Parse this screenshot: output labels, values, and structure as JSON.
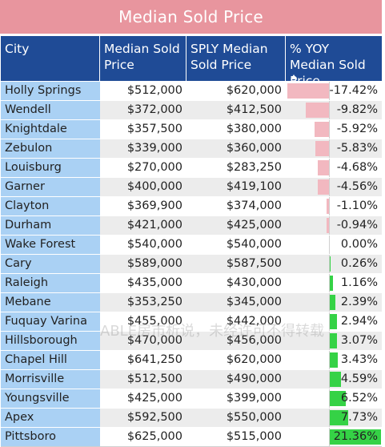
{
  "title": "Median Sold Price",
  "columns": {
    "city": "City",
    "median": "Median Sold Price",
    "sply": "SPLY Median Sold Price",
    "yoy": "% YOY Median Sold Price"
  },
  "rows": [
    {
      "city": "Holly Springs",
      "median": "$512,000",
      "sply": "$620,000",
      "yoy": "-17.42%",
      "yoy_value": -17.42
    },
    {
      "city": "Wendell",
      "median": "$372,000",
      "sply": "$412,500",
      "yoy": "-9.82%",
      "yoy_value": -9.82
    },
    {
      "city": "Knightdale",
      "median": "$357,500",
      "sply": "$380,000",
      "yoy": "-5.92%",
      "yoy_value": -5.92
    },
    {
      "city": "Zebulon",
      "median": "$339,000",
      "sply": "$360,000",
      "yoy": "-5.83%",
      "yoy_value": -5.83
    },
    {
      "city": "Louisburg",
      "median": "$270,000",
      "sply": "$283,250",
      "yoy": "-4.68%",
      "yoy_value": -4.68
    },
    {
      "city": "Garner",
      "median": "$400,000",
      "sply": "$419,100",
      "yoy": "-4.56%",
      "yoy_value": -4.56
    },
    {
      "city": "Clayton",
      "median": "$369,900",
      "sply": "$374,000",
      "yoy": "-1.10%",
      "yoy_value": -1.1
    },
    {
      "city": "Durham",
      "median": "$421,000",
      "sply": "$425,000",
      "yoy": "-0.94%",
      "yoy_value": -0.94
    },
    {
      "city": "Wake Forest",
      "median": "$540,000",
      "sply": "$540,000",
      "yoy": "0.00%",
      "yoy_value": 0.0
    },
    {
      "city": "Cary",
      "median": "$589,000",
      "sply": "$587,500",
      "yoy": "0.26%",
      "yoy_value": 0.26
    },
    {
      "city": "Raleigh",
      "median": "$435,000",
      "sply": "$430,000",
      "yoy": "1.16%",
      "yoy_value": 1.16
    },
    {
      "city": "Mebane",
      "median": "$353,250",
      "sply": "$345,000",
      "yoy": "2.39%",
      "yoy_value": 2.39
    },
    {
      "city": "Fuquay Varina",
      "median": "$455,000",
      "sply": "$442,000",
      "yoy": "2.94%",
      "yoy_value": 2.94
    },
    {
      "city": "Hillsborough",
      "median": "$470,000",
      "sply": "$456,000",
      "yoy": "3.07%",
      "yoy_value": 3.07
    },
    {
      "city": "Chapel Hill",
      "median": "$641,250",
      "sply": "$620,000",
      "yoy": "3.43%",
      "yoy_value": 3.43
    },
    {
      "city": "Morrisville",
      "median": "$512,500",
      "sply": "$490,000",
      "yoy": "4.59%",
      "yoy_value": 4.59
    },
    {
      "city": "Youngsville",
      "median": "$425,000",
      "sply": "$399,000",
      "yoy": "6.52%",
      "yoy_value": 6.52
    },
    {
      "city": "Apex",
      "median": "$592,500",
      "sply": "$550,000",
      "yoy": "7.73%",
      "yoy_value": 7.73
    },
    {
      "city": "Pittsboro",
      "median": "$625,000",
      "sply": "$515,000",
      "yoy": "21.36%",
      "yoy_value": 21.36
    }
  ],
  "colors": {
    "title_bg": "#e8959e",
    "header_bg": "#1f4b96",
    "city_bg": "#aad1f4",
    "negative_bar": "#f2b8c0",
    "positive_bar": "#35d246"
  },
  "sort": {
    "column": "yoy",
    "direction": "ascending"
  },
  "watermark": "ABLE房市析说，未经许可不得转载"
}
